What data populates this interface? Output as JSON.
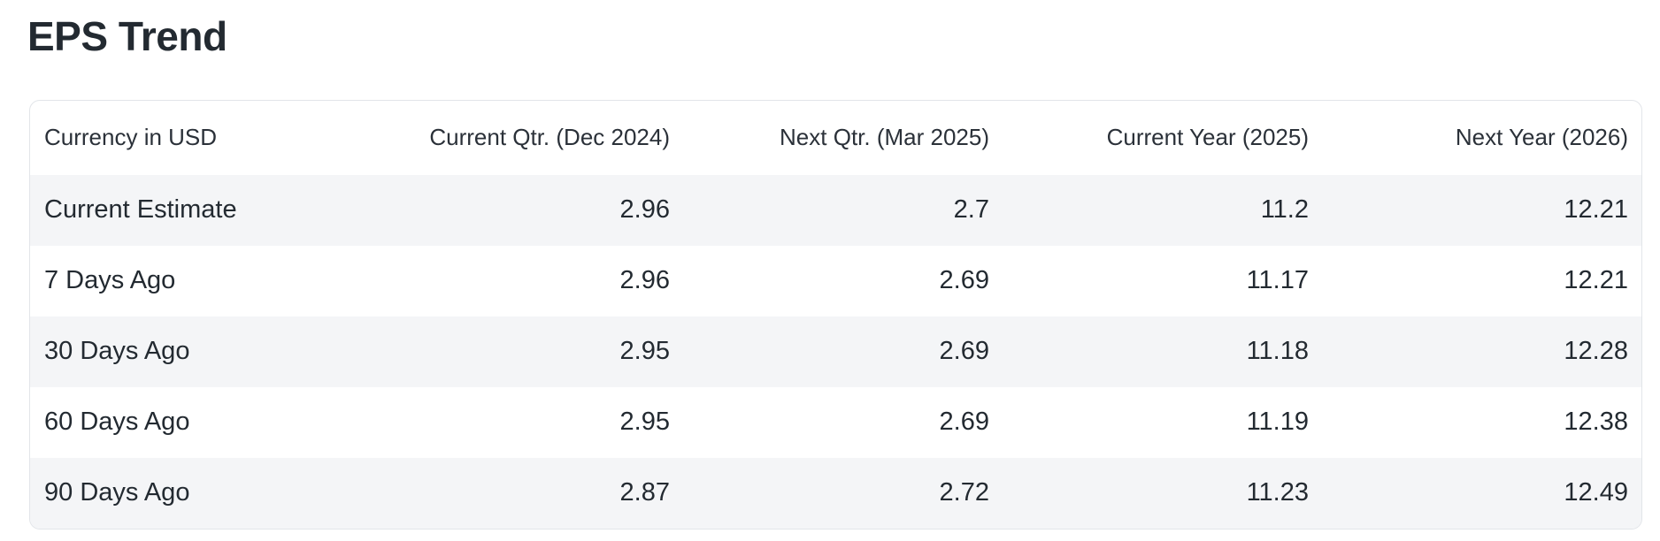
{
  "page_title": "EPS Trend",
  "table": {
    "columns": [
      "Currency in USD",
      "Current Qtr. (Dec 2024)",
      "Next Qtr. (Mar 2025)",
      "Current Year (2025)",
      "Next Year (2026)"
    ],
    "rows": [
      {
        "label": "Current Estimate",
        "values": [
          "2.96",
          "2.7",
          "11.2",
          "12.21"
        ]
      },
      {
        "label": "7 Days Ago",
        "values": [
          "2.96",
          "2.69",
          "11.17",
          "12.21"
        ]
      },
      {
        "label": "30 Days Ago",
        "values": [
          "2.95",
          "2.69",
          "11.18",
          "12.28"
        ]
      },
      {
        "label": "60 Days Ago",
        "values": [
          "2.95",
          "2.69",
          "11.19",
          "12.38"
        ]
      },
      {
        "label": "90 Days Ago",
        "values": [
          "2.87",
          "2.72",
          "11.23",
          "12.49"
        ]
      }
    ]
  },
  "colors": {
    "text": "#232a31",
    "header_text": "#2b3139",
    "stripe_row_background": "#f4f5f7",
    "card_border": "#e2e5e9",
    "page_background": "#ffffff"
  }
}
